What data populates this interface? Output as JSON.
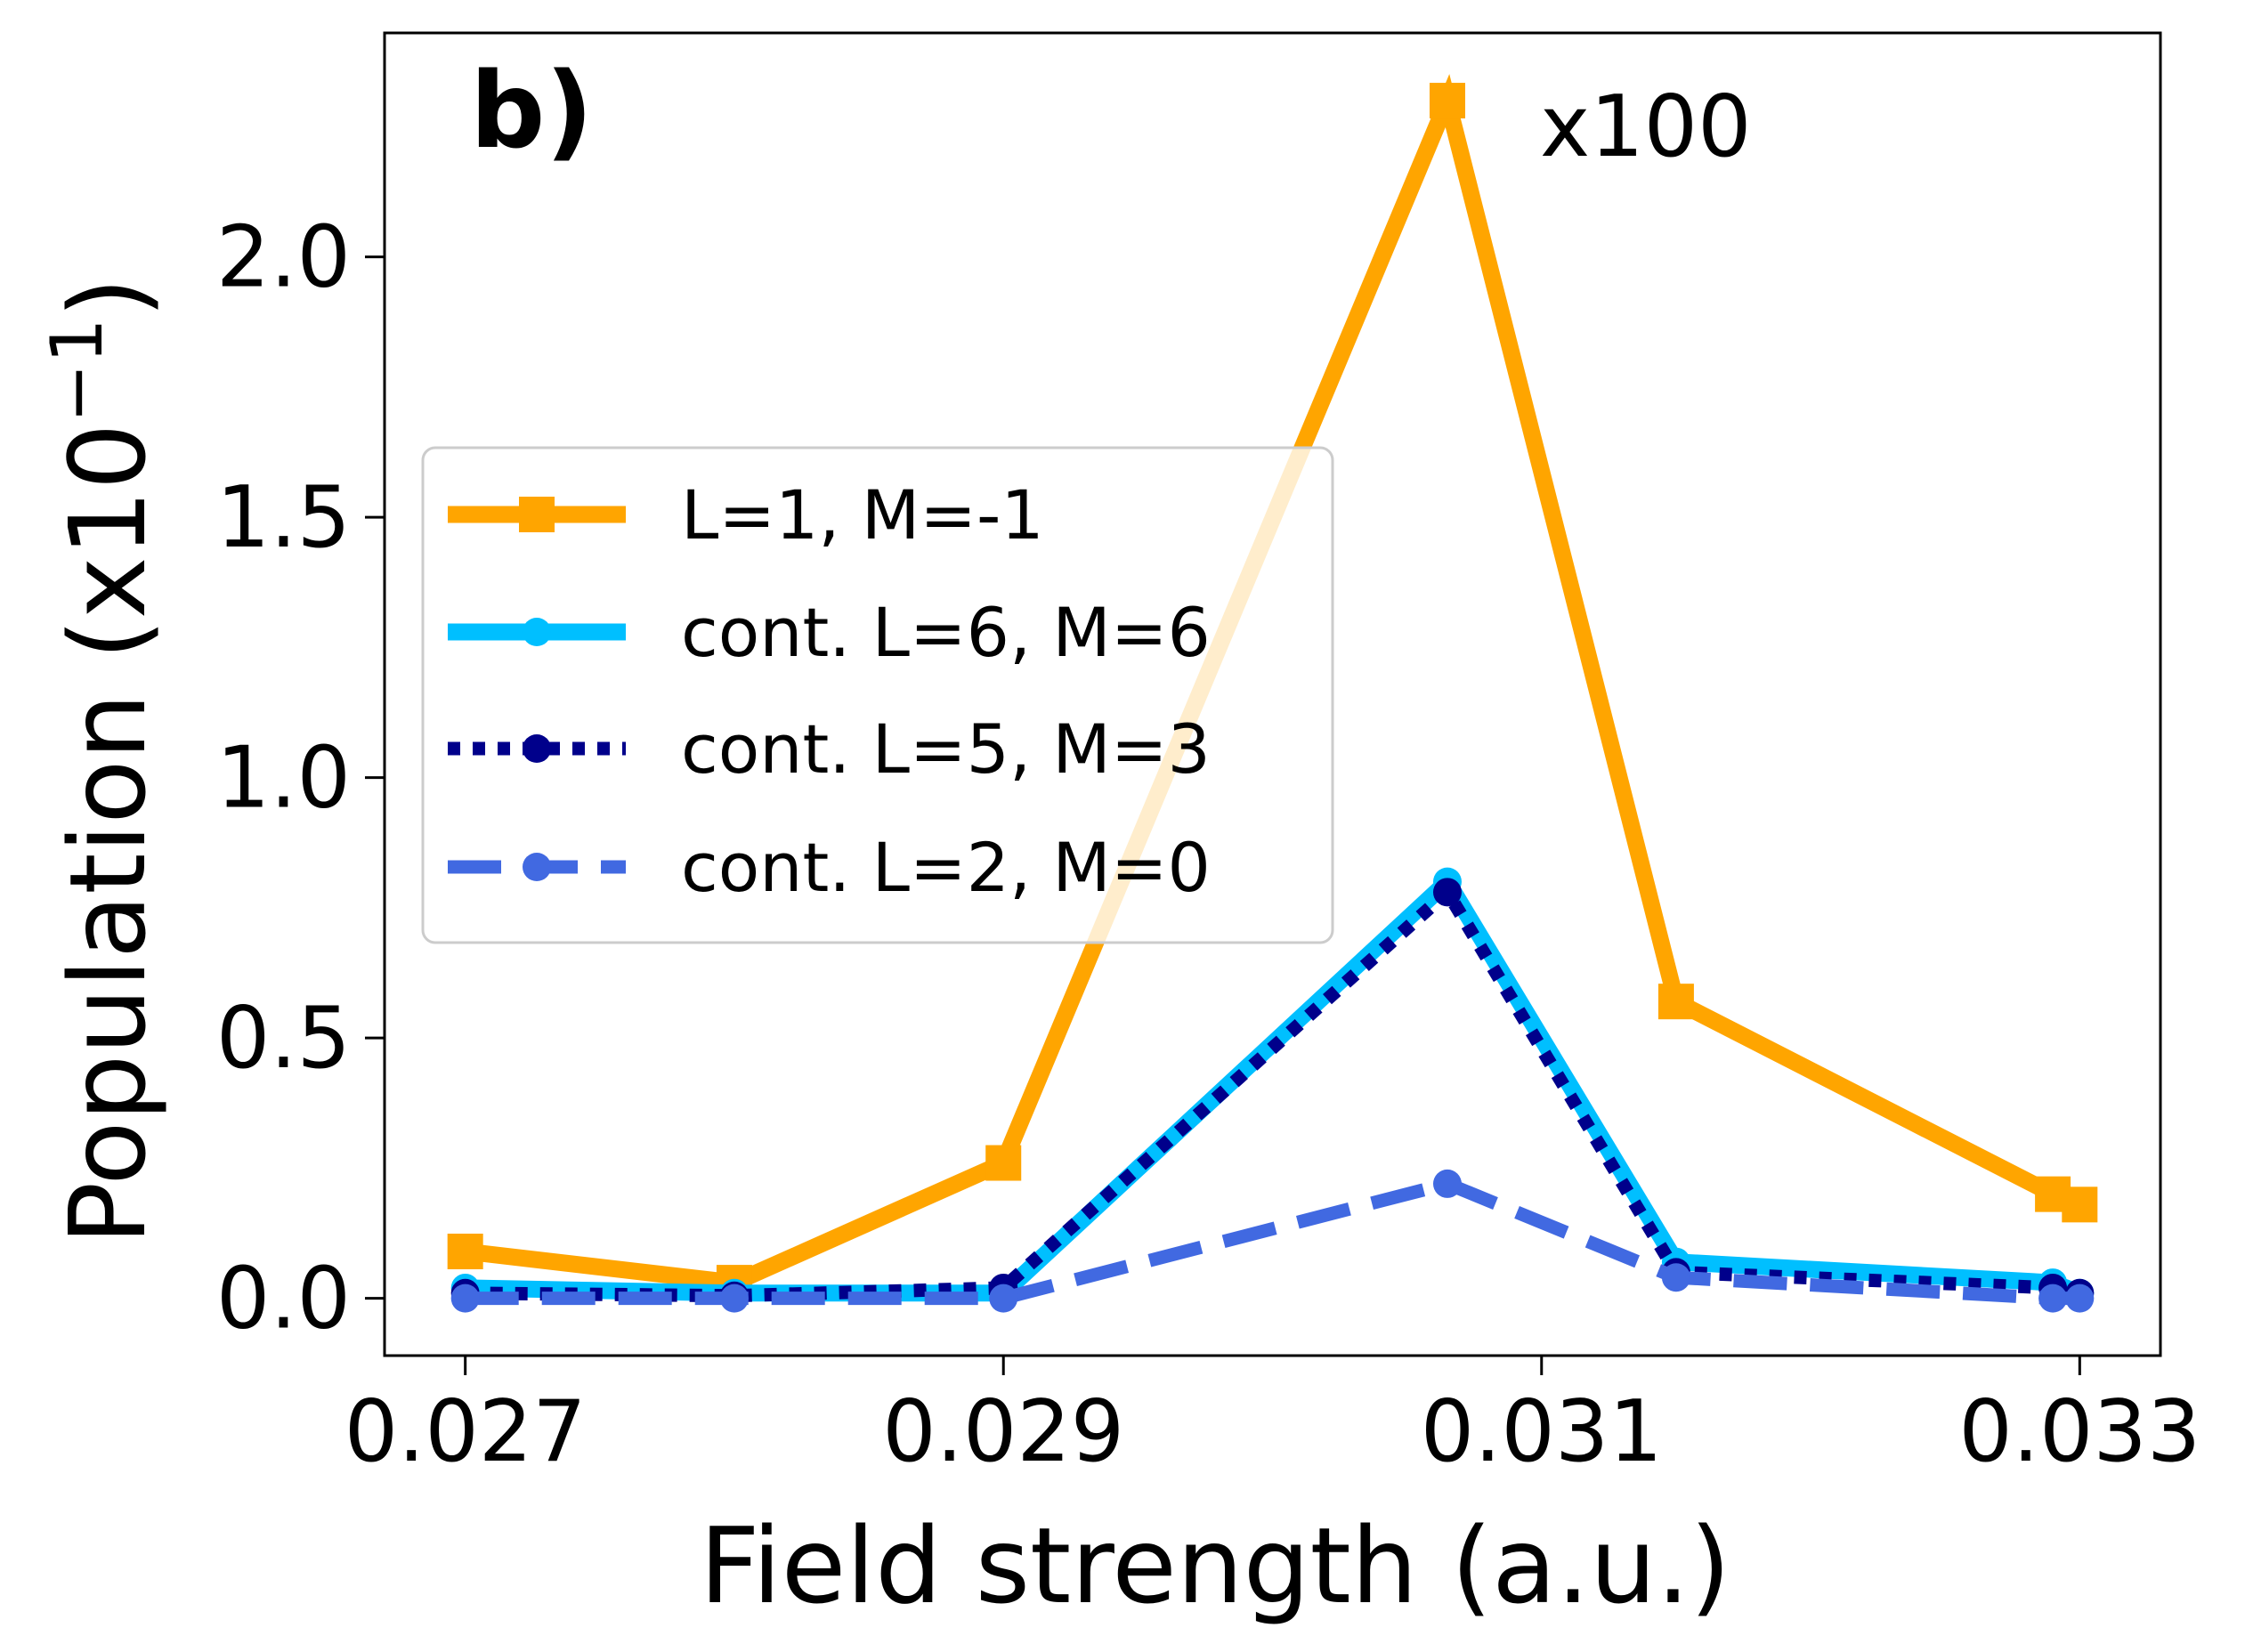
{
  "chart_data": {
    "type": "line",
    "panel_label": "b)",
    "annotation": "x100",
    "xlabel": "Field strength (a.u.)",
    "ylabel_prefix": "Population (x10",
    "ylabel_exponent": "−1",
    "ylabel_suffix": ")",
    "xlim": [
      0.0267,
      0.0333
    ],
    "ylim": [
      -0.11,
      2.43
    ],
    "xticks": [
      0.027,
      0.029,
      0.031,
      0.033
    ],
    "xtick_labels": [
      "0.027",
      "0.029",
      "0.031",
      "0.033"
    ],
    "yticks": [
      0.0,
      0.5,
      1.0,
      1.5,
      2.0
    ],
    "ytick_labels": [
      "0.0",
      "0.5",
      "1.0",
      "1.5",
      "2.0"
    ],
    "legend_position": "center-left",
    "series": [
      {
        "name": "L=1, M=-1",
        "color": "#FFA500",
        "style": "solid",
        "marker": "square",
        "x": [
          0.027,
          0.028,
          0.029,
          0.03065,
          0.0315,
          0.0329,
          0.033
        ],
        "y": [
          0.09,
          0.03,
          0.26,
          2.3,
          0.57,
          0.2,
          0.18
        ]
      },
      {
        "name": "cont. L=6, M=6",
        "color": "#00BFFF",
        "style": "solid",
        "marker": "circle",
        "x": [
          0.027,
          0.028,
          0.029,
          0.03065,
          0.0315,
          0.0329,
          0.033
        ],
        "y": [
          0.02,
          0.01,
          0.01,
          0.8,
          0.07,
          0.03,
          0.01
        ]
      },
      {
        "name": "cont. L=5, M=3",
        "color": "#00008B",
        "style": "dotted",
        "marker": "circle",
        "x": [
          0.027,
          0.028,
          0.029,
          0.03065,
          0.0315,
          0.0329,
          0.033
        ],
        "y": [
          0.01,
          0.005,
          0.02,
          0.78,
          0.05,
          0.02,
          0.01
        ]
      },
      {
        "name": "cont. L=2, M=0",
        "color": "#4169E1",
        "style": "dashed",
        "marker": "circle",
        "x": [
          0.027,
          0.028,
          0.029,
          0.03065,
          0.0315,
          0.0329,
          0.033
        ],
        "y": [
          0.0,
          0.0,
          0.0,
          0.22,
          0.04,
          0.0,
          0.0
        ]
      }
    ]
  }
}
